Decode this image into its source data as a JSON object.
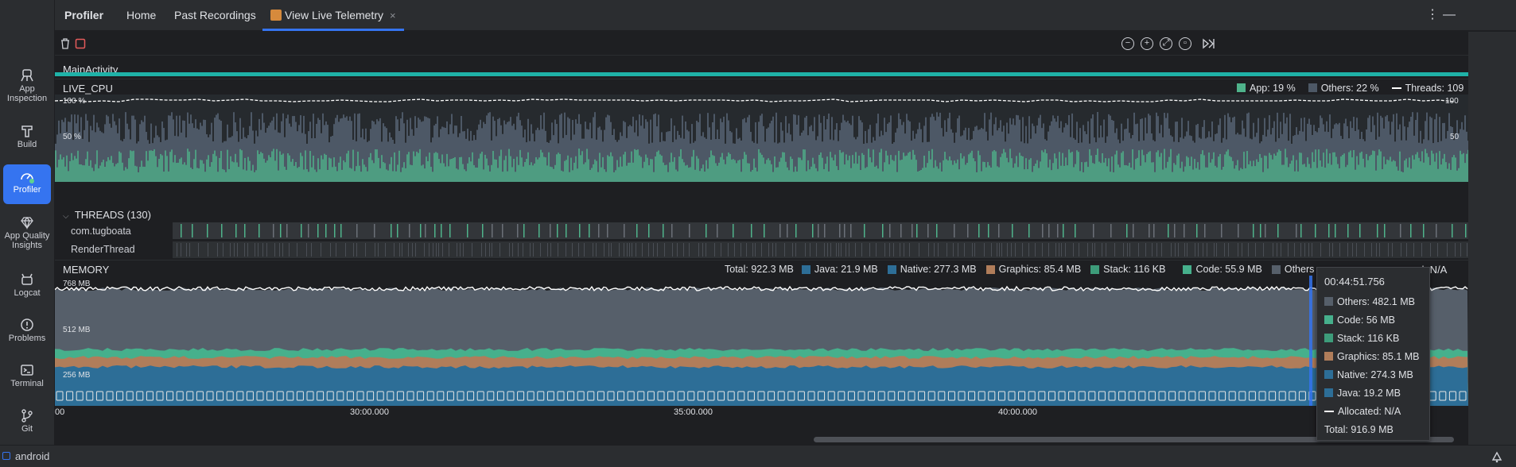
{
  "sidebar": {
    "items": [
      {
        "label": "App Inspection",
        "icon": "app-inspection-icon"
      },
      {
        "label": "Build",
        "icon": "hammer-icon"
      },
      {
        "label": "Profiler",
        "icon": "gauge-icon",
        "active": true
      },
      {
        "label": "App Quality Insights",
        "icon": "diamond-icon"
      },
      {
        "label": "Logcat",
        "icon": "logcat-icon"
      },
      {
        "label": "Problems",
        "icon": "alert-circle-icon"
      },
      {
        "label": "Terminal",
        "icon": "terminal-icon"
      },
      {
        "label": "Git",
        "icon": "git-branch-icon"
      }
    ]
  },
  "tabs": {
    "title": "Profiler",
    "home": "Home",
    "past": "Past Recordings",
    "live": "View Live Telemetry",
    "close": "×"
  },
  "activity": "MainActivity",
  "cpu": {
    "title": "LIVE_CPU",
    "legend_app": "App: 19 %",
    "legend_others": "Others: 22 %",
    "legend_threads": "Threads: 109",
    "y_left_top": "100 %",
    "y_left_mid": "50 %",
    "y_right_top": "100",
    "y_right_mid": "50"
  },
  "threads": {
    "header": "THREADS (130)",
    "rows": [
      "com.tugboata",
      "RenderThread"
    ]
  },
  "memory": {
    "title": "MEMORY",
    "total": "Total: 922.3 MB",
    "java": "Java: 21.9 MB",
    "native": "Native: 277.3 MB",
    "graphics": "Graphics: 85.4 MB",
    "stack": "Stack: 116 KB",
    "code": "Code: 55.9 MB",
    "others": "Others",
    "allocated": "ed: N/A",
    "y_768": "768 MB",
    "y_512": "512 MB",
    "y_256": "256 MB"
  },
  "timeline": {
    "t0": "00",
    "t1": "30:00.000",
    "t2": "35:00.000",
    "t3": "40:00.000"
  },
  "tooltip": {
    "time": "00:44:51.756",
    "others": "Others: 482.1 MB",
    "code": "Code: 56 MB",
    "stack": "Stack: 116 KB",
    "graphics": "Graphics: 85.1 MB",
    "native": "Native: 274.3 MB",
    "java": "Java: 19.2 MB",
    "allocated": "Allocated: N/A",
    "total": "Total: 916.9 MB"
  },
  "status": {
    "project": "android"
  },
  "colors": {
    "accent": "#3574f0",
    "cpu_app": "#4fb38b",
    "cpu_others": "#4d5866",
    "activity_bar": "#1fb3a8",
    "mem_java": "#2d6e97",
    "mem_native": "#2d6e97",
    "mem_graphics": "#b07d5a",
    "mem_stack": "#3d9c7a",
    "mem_code": "#46b08c",
    "mem_others": "#565f6a"
  }
}
